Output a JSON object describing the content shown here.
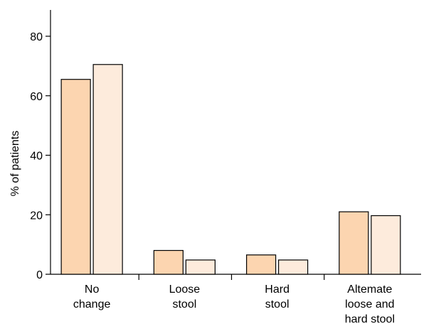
{
  "chart_data": {
    "type": "bar",
    "categories": [
      [
        "No",
        "change"
      ],
      [
        "Loose",
        "stool"
      ],
      [
        "Hard",
        "stool"
      ],
      [
        "Altemate",
        "loose and",
        "hard stool"
      ]
    ],
    "series": [
      {
        "values": [
          65.5,
          8,
          6.5,
          21
        ],
        "color": "#fcd5b0"
      },
      {
        "values": [
          70.5,
          4.8,
          4.8,
          19.7
        ],
        "color": "#fdebdc"
      }
    ],
    "title": "",
    "xlabel": "",
    "ylabel": "% of patients",
    "ylim": [
      0,
      90
    ],
    "yticks": [
      0,
      20,
      40,
      60,
      80
    ],
    "grid": false,
    "legend": false
  }
}
